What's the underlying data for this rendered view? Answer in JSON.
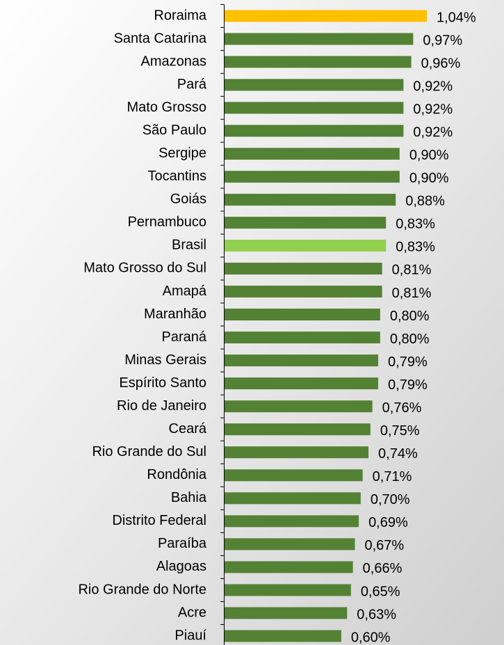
{
  "chart_data": {
    "type": "barh",
    "categories": [
      "Roraima",
      "Santa Catarina",
      "Amazonas",
      "Pará",
      "Mato Grosso",
      "São Paulo",
      "Sergipe",
      "Tocantins",
      "Goiás",
      "Pernambuco",
      "Brasil",
      "Mato Grosso do Sul",
      "Amapá",
      "Maranhão",
      "Paraná",
      "Minas Gerais",
      "Espírito Santo",
      "Rio de Janeiro",
      "Ceará",
      "Rio Grande do Sul",
      "Rondônia",
      "Bahia",
      "Distrito Federal",
      "Paraíba",
      "Alagoas",
      "Rio Grande do Norte",
      "Acre",
      "Piauí"
    ],
    "values": [
      1.04,
      0.97,
      0.96,
      0.92,
      0.92,
      0.92,
      0.9,
      0.9,
      0.88,
      0.83,
      0.83,
      0.81,
      0.81,
      0.8,
      0.8,
      0.79,
      0.79,
      0.76,
      0.75,
      0.74,
      0.71,
      0.7,
      0.69,
      0.67,
      0.66,
      0.65,
      0.63,
      0.6
    ],
    "value_labels": [
      "1,04%",
      "0,97%",
      "0,96%",
      "0,92%",
      "0,92%",
      "0,92%",
      "0,90%",
      "0,90%",
      "0,88%",
      "0,83%",
      "0,83%",
      "0,81%",
      "0,81%",
      "0,80%",
      "0,80%",
      "0,79%",
      "0,79%",
      "0,76%",
      "0,75%",
      "0,74%",
      "0,71%",
      "0,70%",
      "0,69%",
      "0,67%",
      "0,66%",
      "0,65%",
      "0,63%",
      "0,60%"
    ],
    "colors": [
      "#ffc000",
      "#548235",
      "#548235",
      "#548235",
      "#548235",
      "#548235",
      "#548235",
      "#548235",
      "#548235",
      "#548235",
      "#92d050",
      "#548235",
      "#548235",
      "#548235",
      "#548235",
      "#548235",
      "#548235",
      "#548235",
      "#548235",
      "#548235",
      "#548235",
      "#548235",
      "#548235",
      "#548235",
      "#548235",
      "#548235",
      "#548235",
      "#548235"
    ]
  }
}
